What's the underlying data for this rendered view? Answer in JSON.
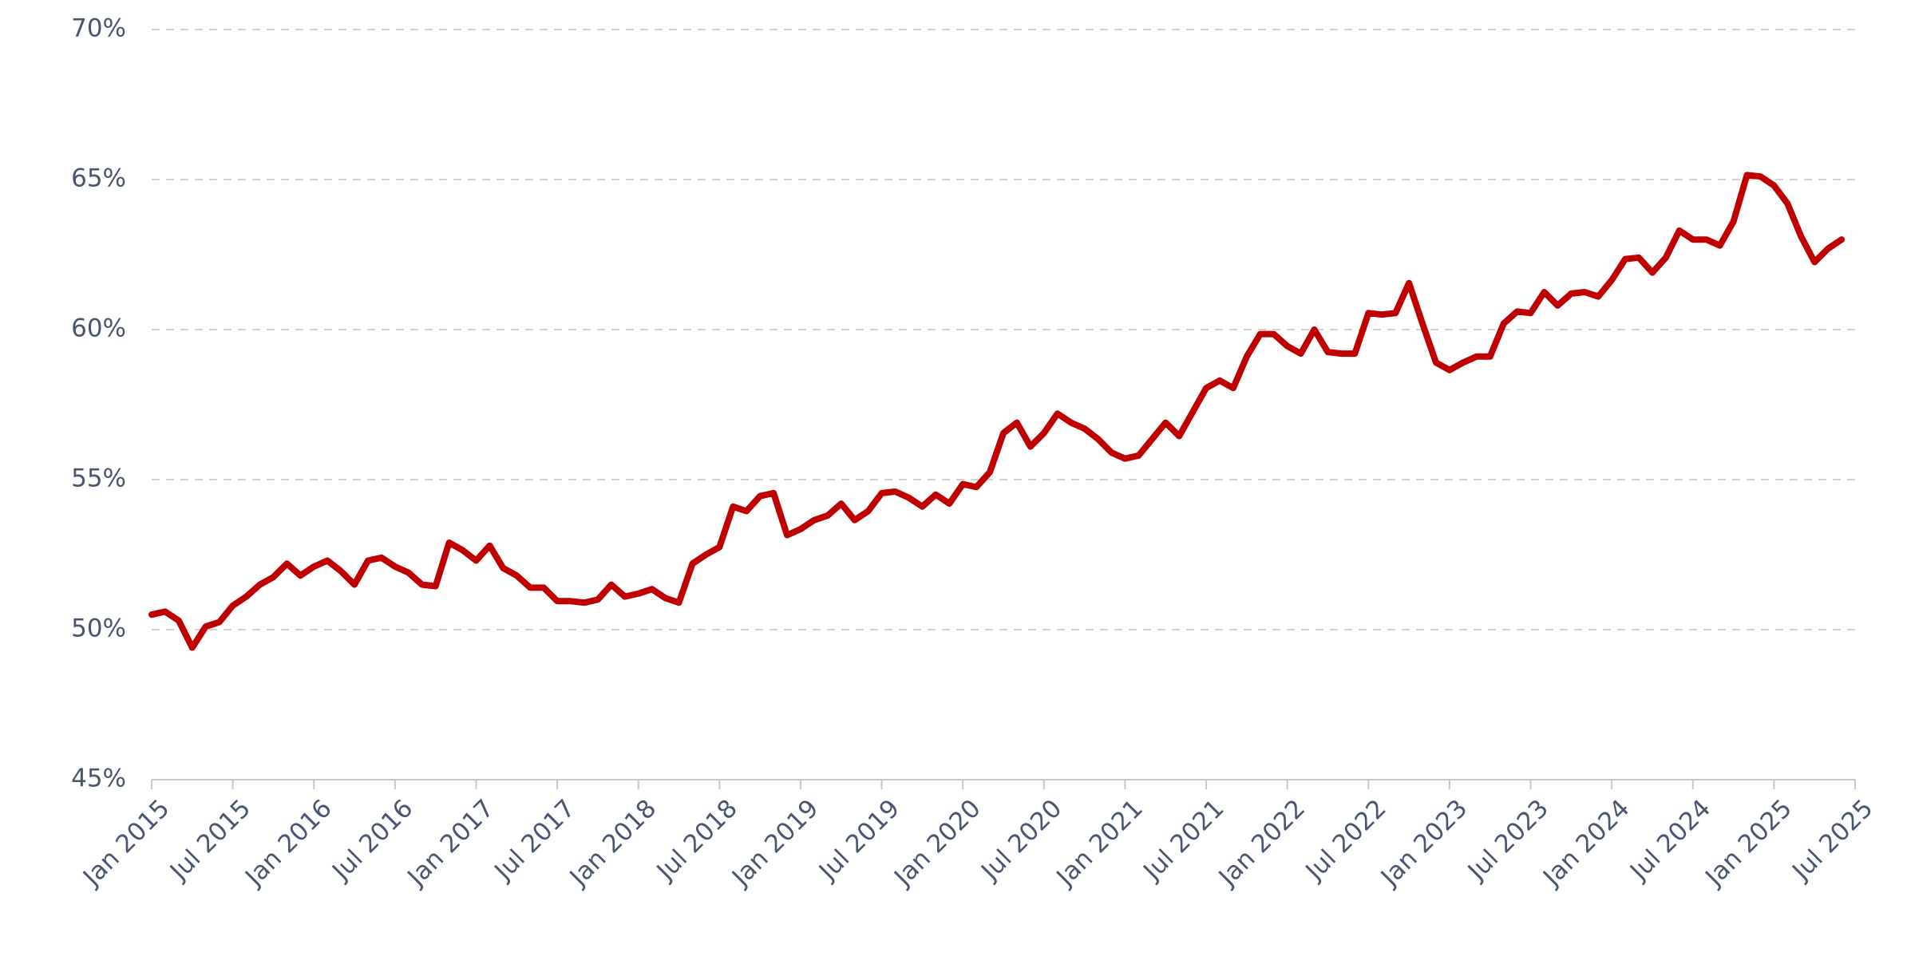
{
  "chart_data": {
    "type": "line",
    "x": [
      "2015-01",
      "2015-02",
      "2015-03",
      "2015-04",
      "2015-05",
      "2015-06",
      "2015-07",
      "2015-08",
      "2015-09",
      "2015-10",
      "2015-11",
      "2015-12",
      "2016-01",
      "2016-02",
      "2016-03",
      "2016-04",
      "2016-05",
      "2016-06",
      "2016-07",
      "2016-08",
      "2016-09",
      "2016-10",
      "2016-11",
      "2016-12",
      "2017-01",
      "2017-02",
      "2017-03",
      "2017-04",
      "2017-05",
      "2017-06",
      "2017-07",
      "2017-08",
      "2017-09",
      "2017-10",
      "2017-11",
      "2017-12",
      "2018-01",
      "2018-02",
      "2018-03",
      "2018-04",
      "2018-05",
      "2018-06",
      "2018-07",
      "2018-08",
      "2018-09",
      "2018-10",
      "2018-11",
      "2018-12",
      "2019-01",
      "2019-02",
      "2019-03",
      "2019-04",
      "2019-05",
      "2019-06",
      "2019-07",
      "2019-08",
      "2019-09",
      "2019-10",
      "2019-11",
      "2019-12",
      "2020-01",
      "2020-02",
      "2020-03",
      "2020-04",
      "2020-05",
      "2020-06",
      "2020-07",
      "2020-08",
      "2020-09",
      "2020-10",
      "2020-11",
      "2020-12",
      "2021-01",
      "2021-02",
      "2021-03",
      "2021-04",
      "2021-05",
      "2021-06",
      "2021-07",
      "2021-08",
      "2021-09",
      "2021-10",
      "2021-11",
      "2021-12",
      "2022-01",
      "2022-02",
      "2022-03",
      "2022-04",
      "2022-05",
      "2022-06",
      "2022-07",
      "2022-08",
      "2022-09",
      "2022-10",
      "2022-11",
      "2022-12",
      "2023-01",
      "2023-02",
      "2023-03",
      "2023-04",
      "2023-05",
      "2023-06",
      "2023-07",
      "2023-08",
      "2023-09",
      "2023-10",
      "2023-11",
      "2023-12",
      "2024-01",
      "2024-02",
      "2024-03",
      "2024-04",
      "2024-05",
      "2024-06",
      "2024-07",
      "2024-08",
      "2024-09",
      "2024-10",
      "2024-11",
      "2024-12",
      "2025-01",
      "2025-02",
      "2025-03",
      "2025-04",
      "2025-05",
      "2025-06"
    ],
    "series": [
      {
        "color": "#c00000",
        "values": [
          50.5,
          50.6,
          50.3,
          49.4,
          50.1,
          50.25,
          50.8,
          51.1,
          51.5,
          51.75,
          52.2,
          51.8,
          52.1,
          52.3,
          51.95,
          51.5,
          52.3,
          52.4,
          52.1,
          51.9,
          51.5,
          51.45,
          52.9,
          52.65,
          52.3,
          52.8,
          52.05,
          51.8,
          51.4,
          51.4,
          50.95,
          50.95,
          50.9,
          51.0,
          51.5,
          51.1,
          51.2,
          51.35,
          51.05,
          50.9,
          52.2,
          52.5,
          52.75,
          54.1,
          53.95,
          54.45,
          54.55,
          53.15,
          53.35,
          53.65,
          53.8,
          54.2,
          53.65,
          53.95,
          54.55,
          54.6,
          54.4,
          54.1,
          54.5,
          54.2,
          54.85,
          54.75,
          55.25,
          56.55,
          56.9,
          56.1,
          56.55,
          57.2,
          56.9,
          56.7,
          56.35,
          55.9,
          55.7,
          55.8,
          56.35,
          56.9,
          56.45,
          57.25,
          58.05,
          58.3,
          58.05,
          59.1,
          59.85,
          59.85,
          59.45,
          59.2,
          60.0,
          59.25,
          59.2,
          59.2,
          60.55,
          60.5,
          60.55,
          61.55,
          60.2,
          58.9,
          58.65,
          58.9,
          59.1,
          59.1,
          60.2,
          60.6,
          60.55,
          61.25,
          60.8,
          61.2,
          61.25,
          61.1,
          61.65,
          62.35,
          62.4,
          61.9,
          62.4,
          63.3,
          63.0,
          63.0,
          62.8,
          63.6,
          65.15,
          65.1,
          64.8,
          64.2,
          63.1,
          62.25,
          62.7,
          63.0
        ]
      }
    ],
    "xlim": [
      "2015-01",
      "2025-07"
    ],
    "xticks": [
      {
        "value": "2015-01",
        "label": "Jan 2015"
      },
      {
        "value": "2015-07",
        "label": "Jul 2015"
      },
      {
        "value": "2016-01",
        "label": "Jan 2016"
      },
      {
        "value": "2016-07",
        "label": "Jul 2016"
      },
      {
        "value": "2017-01",
        "label": "Jan 2017"
      },
      {
        "value": "2017-07",
        "label": "Jul 2017"
      },
      {
        "value": "2018-01",
        "label": "Jan 2018"
      },
      {
        "value": "2018-07",
        "label": "Jul 2018"
      },
      {
        "value": "2019-01",
        "label": "Jan 2019"
      },
      {
        "value": "2019-07",
        "label": "Jul 2019"
      },
      {
        "value": "2020-01",
        "label": "Jan 2020"
      },
      {
        "value": "2020-07",
        "label": "Jul 2020"
      },
      {
        "value": "2021-01",
        "label": "Jan 2021"
      },
      {
        "value": "2021-07",
        "label": "Jul 2021"
      },
      {
        "value": "2022-01",
        "label": "Jan 2022"
      },
      {
        "value": "2022-07",
        "label": "Jul 2022"
      },
      {
        "value": "2023-01",
        "label": "Jan 2023"
      },
      {
        "value": "2023-07",
        "label": "Jul 2023"
      },
      {
        "value": "2024-01",
        "label": "Jan 2024"
      },
      {
        "value": "2024-07",
        "label": "Jul 2024"
      },
      {
        "value": "2025-01",
        "label": "Jan 2025"
      },
      {
        "value": "2025-07",
        "label": "Jul 2025"
      }
    ],
    "ylim": [
      45,
      70
    ],
    "yticks": [
      {
        "value": 45,
        "label": "45%"
      },
      {
        "value": 50,
        "label": "50%"
      },
      {
        "value": 55,
        "label": "55%"
      },
      {
        "value": 60,
        "label": "60%"
      },
      {
        "value": 65,
        "label": "65%"
      },
      {
        "value": 70,
        "label": "70%"
      }
    ],
    "grid": true
  }
}
